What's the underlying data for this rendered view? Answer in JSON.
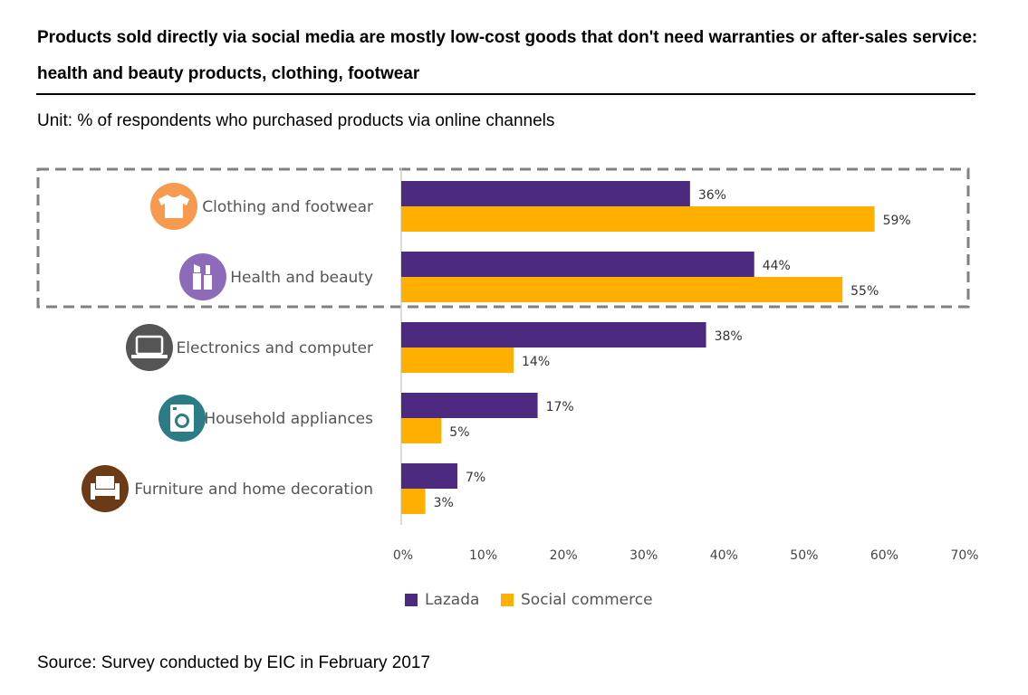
{
  "header": {
    "title": "Products sold directly via social media are mostly low-cost goods that don't need warranties or after-sales service:  health and beauty products, clothing, footwear",
    "unit": "Unit: % of respondents who purchased products via online channels"
  },
  "footer": {
    "source": "Source: Survey conducted by EIC in February 2017"
  },
  "colors": {
    "lazada": "#4B2A7F",
    "social": "#FFAF00",
    "icon_clothing": "#F59A4E",
    "icon_health": "#8C6CB8",
    "icon_electronics": "#555555",
    "icon_household": "#2C7C86",
    "icon_furniture": "#6B3A17"
  },
  "chart_data": {
    "type": "bar",
    "orientation": "horizontal",
    "categories": [
      "Clothing and footwear",
      "Health and beauty",
      "Electronics and computer",
      "Household appliances",
      "Furniture and home decoration"
    ],
    "category_icons": [
      "tshirt-icon",
      "lipstick-icon",
      "laptop-icon",
      "washing-machine-icon",
      "armchair-icon"
    ],
    "series": [
      {
        "name": "Lazada",
        "values": [
          36,
          44,
          38,
          17,
          7
        ],
        "labels": [
          "36%",
          "44%",
          "38%",
          "17%",
          "7%"
        ]
      },
      {
        "name": "Social commerce",
        "values": [
          59,
          55,
          14,
          5,
          3
        ],
        "labels": [
          "59%",
          "55%",
          "14%",
          "5%",
          "3%"
        ]
      }
    ],
    "xlim": [
      0,
      70
    ],
    "xticks": [
      "0%",
      "10%",
      "20%",
      "30%",
      "40%",
      "50%",
      "60%",
      "70%"
    ],
    "highlight": {
      "categories": [
        "Clothing and footwear",
        "Health and beauty"
      ],
      "style": "dashed box"
    },
    "legend": {
      "placement": "bottom-center",
      "entries": [
        "Lazada",
        "Social commerce"
      ]
    }
  }
}
